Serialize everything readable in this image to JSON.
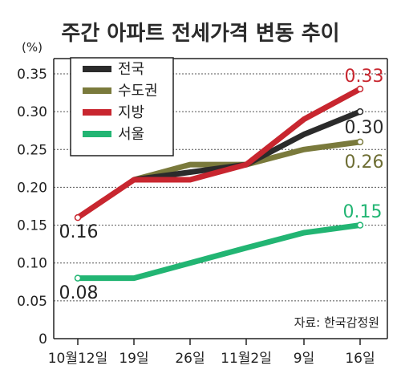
{
  "chart_data": {
    "type": "line",
    "title": "주간 아파트 전세가격 변동 추이",
    "unit_label": "(%)",
    "source": "자료: 한국감정원",
    "categories": [
      "10월12일",
      "19일",
      "26일",
      "11월2일",
      "9일",
      "16일"
    ],
    "ylim": [
      0,
      0.35
    ],
    "yticks": [
      "0",
      "0.05",
      "0.10",
      "0.15",
      "0.20",
      "0.25",
      "0.30",
      "0.35"
    ],
    "grid": true,
    "legend_position": "top-left",
    "series": [
      {
        "name": "전국",
        "color": "#2b2b2b",
        "values": [
          null,
          0.21,
          0.22,
          0.23,
          0.27,
          0.3
        ],
        "end_label": "0.30"
      },
      {
        "name": "수도권",
        "color": "#7a7a3c",
        "values": [
          null,
          0.21,
          0.23,
          0.23,
          0.25,
          0.26
        ],
        "end_label": "0.26"
      },
      {
        "name": "지방",
        "color": "#c8262f",
        "values": [
          0.16,
          0.21,
          0.21,
          0.23,
          0.29,
          0.33
        ],
        "start_label": "0.16",
        "end_label": "0.33"
      },
      {
        "name": "서울",
        "color": "#22b573",
        "values": [
          0.08,
          0.08,
          0.1,
          0.12,
          0.14,
          0.15
        ],
        "start_label": "0.08",
        "end_label": "0.15"
      }
    ]
  }
}
